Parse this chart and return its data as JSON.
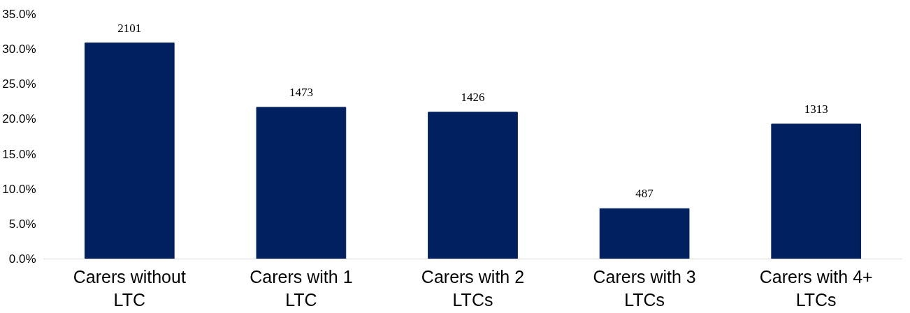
{
  "chart_data": {
    "type": "bar",
    "categories": [
      "Carers without LTC",
      "Carers with 1 LTC",
      "Carers with 2 LTCs",
      "Carers with 3 LTCs",
      "Carers with 4+ LTCs"
    ],
    "values": [
      30.9,
      21.7,
      21.0,
      7.2,
      19.3
    ],
    "annotations": [
      {
        "text": "2101",
        "x": "Carers without LTC",
        "y": 30.9
      },
      {
        "text": "1473",
        "x": "Carers with 1 LTC",
        "y": 21.7
      },
      {
        "text": "1426",
        "x": "Carers with 2 LTCs",
        "y": 21.0
      },
      {
        "text": "487",
        "x": "Carers with 3 LTCs",
        "y": 7.2
      },
      {
        "text": "1313",
        "x": "Carers with 4+ LTCs",
        "y": 19.3
      }
    ],
    "color": "#002060",
    "ylim": [
      0,
      35
    ],
    "yticks": [
      {
        "value": 0,
        "label": "0.0%"
      },
      {
        "value": 5,
        "label": "5.0%"
      },
      {
        "value": 10,
        "label": "10.0%"
      },
      {
        "value": 15,
        "label": "15.0%"
      },
      {
        "value": 20,
        "label": "20.0%"
      },
      {
        "value": 25,
        "label": "25.0%"
      },
      {
        "value": 30,
        "label": "30.0%"
      },
      {
        "value": 35,
        "label": "35.0%"
      }
    ],
    "grid": false
  }
}
